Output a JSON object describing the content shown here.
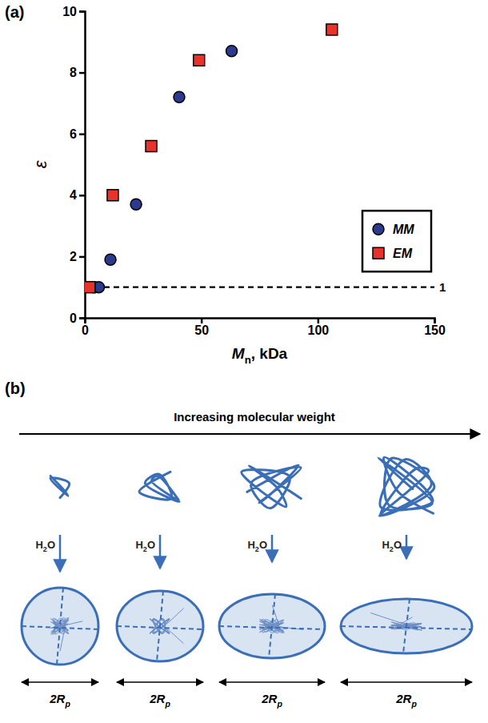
{
  "chart_data": {
    "type": "scatter",
    "panel_label": "(a)",
    "x_label": {
      "base": "M",
      "sub": "n",
      "tail": ", kDa"
    },
    "y_label": "ε",
    "xlim": [
      0,
      150
    ],
    "xticks": [
      0,
      50,
      100,
      150
    ],
    "ylim": [
      0,
      10
    ],
    "yticks": [
      0,
      2,
      4,
      6,
      8,
      10
    ],
    "grid": false,
    "legend": "lower right",
    "reference_line": {
      "value": 1,
      "label": "1"
    },
    "series": [
      {
        "name": "MM",
        "color": "#2b3a8c",
        "marker": "circle",
        "x": [
          4,
          6,
          11,
          22,
          40.5,
          63
        ],
        "values": [
          1,
          1,
          1.9,
          3.7,
          7.2,
          8.7
        ]
      },
      {
        "name": "EM",
        "color": "#e8322c",
        "marker": "square",
        "x": [
          2,
          12,
          28.5,
          49,
          106
        ],
        "values": [
          1,
          4,
          5.6,
          8.4,
          9.4
        ]
      }
    ]
  },
  "diagram": {
    "panel_label": "(b)",
    "title": "Increasing molecular weight",
    "stages": [
      {
        "water": {
          "base": "H",
          "sub": "2",
          "tail": "O"
        },
        "size": {
          "base": "2R",
          "sub": "p"
        }
      },
      {
        "water": {
          "base": "H",
          "sub": "2",
          "tail": "O"
        },
        "size": {
          "base": "2R",
          "sub": "p"
        }
      },
      {
        "water": {
          "base": "H",
          "sub": "2",
          "tail": "O"
        },
        "size": {
          "base": "2R",
          "sub": "p"
        }
      },
      {
        "water": {
          "base": "H",
          "sub": "2",
          "tail": "O"
        },
        "size": {
          "base": "2R",
          "sub": "p"
        }
      }
    ]
  }
}
